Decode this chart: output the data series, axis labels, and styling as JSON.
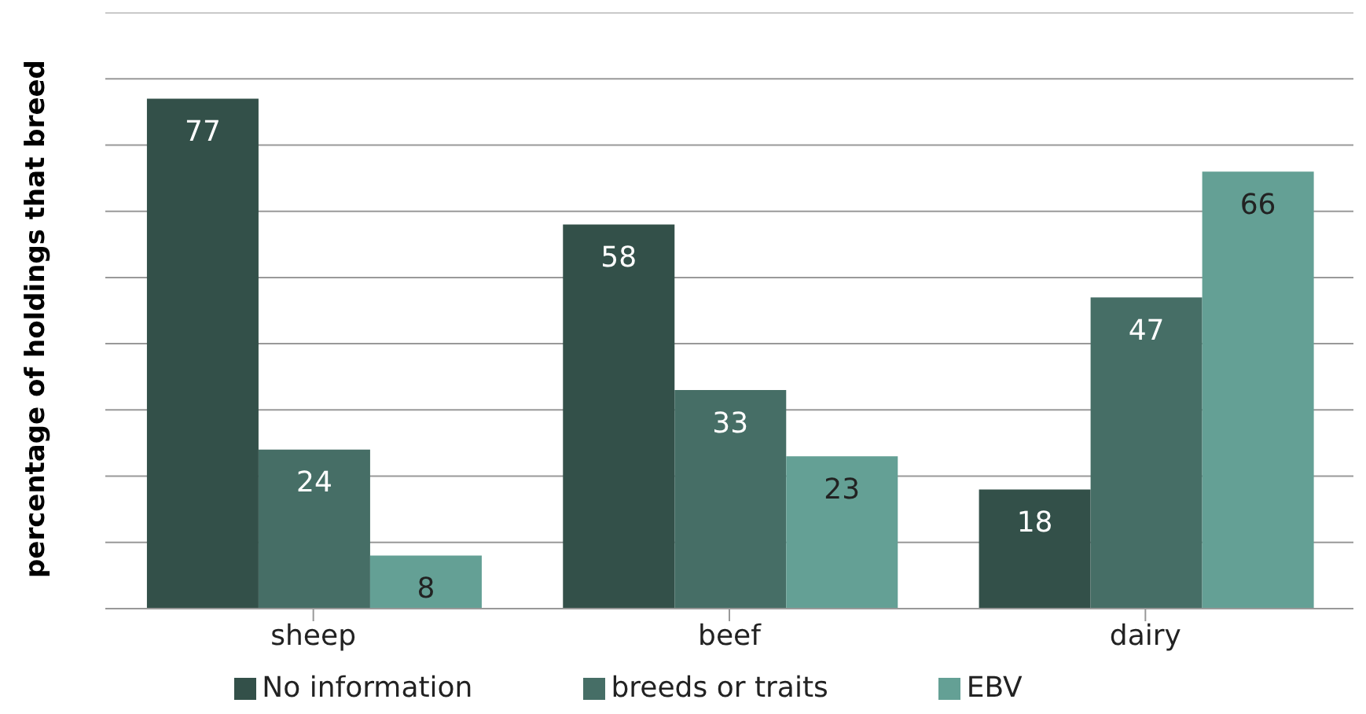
{
  "chart_data": {
    "type": "bar",
    "ylabel": "percentage of holdings that breed",
    "categories": [
      "sheep",
      "beef",
      "dairy"
    ],
    "series": [
      {
        "name": "No information",
        "color": "#335049",
        "values": [
          77,
          58,
          18
        ]
      },
      {
        "name": "breeds or traits",
        "color": "#466e66",
        "values": [
          24,
          33,
          47
        ]
      },
      {
        "name": "EBV",
        "color": "#64a095",
        "values": [
          8,
          23,
          66
        ]
      }
    ],
    "ylim": [
      0,
      90
    ],
    "yticks": [
      {
        "value": 0,
        "label": null
      },
      {
        "value": 10,
        "label": null
      },
      {
        "value": 20,
        "label": null
      },
      {
        "value": 30,
        "label": null
      },
      {
        "value": 40,
        "label": null
      },
      {
        "value": 50,
        "label": null
      },
      {
        "value": 60,
        "label": null
      },
      {
        "value": 70,
        "label": null
      },
      {
        "value": 80,
        "label": null
      },
      {
        "value": 90,
        "label": null
      }
    ],
    "tick_labels": "x",
    "grid": "y",
    "data_labels": true,
    "legend": "bottom"
  }
}
